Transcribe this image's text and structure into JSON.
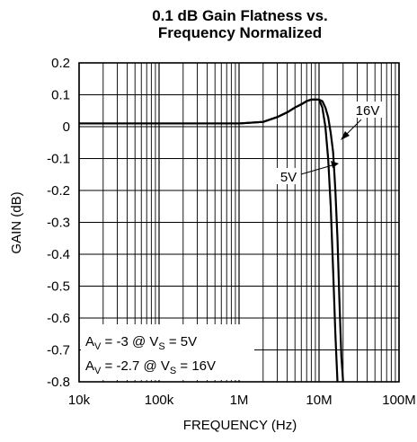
{
  "chart_data": {
    "type": "line",
    "title_line1": "0.1 dB Gain Flatness vs.",
    "title_line2": "Frequency Normalized",
    "xlabel": "FREQUENCY (Hz)",
    "ylabel": "GAIN (dB)",
    "x_scale": "log",
    "xlim": [
      10000,
      100000000
    ],
    "ylim": [
      -0.8,
      0.2
    ],
    "grid": true,
    "x_ticks": [
      {
        "value": 10000,
        "label": "10k"
      },
      {
        "value": 100000,
        "label": "100k"
      },
      {
        "value": 1000000,
        "label": "1M"
      },
      {
        "value": 10000000,
        "label": "10M"
      },
      {
        "value": 100000000,
        "label": "100M"
      }
    ],
    "y_ticks": [
      {
        "value": 0.2,
        "label": "0.2"
      },
      {
        "value": 0.1,
        "label": "0.1"
      },
      {
        "value": 0,
        "label": "0"
      },
      {
        "value": -0.1,
        "label": "-0.1"
      },
      {
        "value": -0.2,
        "label": "-0.2"
      },
      {
        "value": -0.3,
        "label": "-0.3"
      },
      {
        "value": -0.4,
        "label": "-0.4"
      },
      {
        "value": -0.5,
        "label": "-0.5"
      },
      {
        "value": -0.6,
        "label": "-0.6"
      },
      {
        "value": -0.7,
        "label": "-0.7"
      },
      {
        "value": -0.8,
        "label": "-0.8"
      }
    ],
    "series": [
      {
        "name": "5V",
        "x": [
          10000,
          100000,
          1000000,
          2000000,
          3000000,
          4000000,
          5000000,
          6000000,
          7000000,
          8000000,
          9000000,
          10000000,
          11000000,
          12000000,
          13000000,
          14000000,
          15000000,
          16000000,
          17000000
        ],
        "y": [
          0.01,
          0.01,
          0.01,
          0.015,
          0.03,
          0.045,
          0.06,
          0.07,
          0.08,
          0.085,
          0.085,
          0.085,
          0.06,
          0.0,
          -0.1,
          -0.25,
          -0.45,
          -0.65,
          -0.8
        ]
      },
      {
        "name": "16V",
        "x": [
          10000,
          100000,
          1000000,
          2000000,
          3000000,
          4000000,
          5000000,
          6000000,
          7000000,
          8000000,
          9000000,
          10000000,
          11000000,
          12000000,
          13000000,
          14000000,
          15000000,
          16000000,
          17000000,
          18000000,
          19000000,
          20000000
        ],
        "y": [
          0.01,
          0.01,
          0.01,
          0.015,
          0.03,
          0.045,
          0.06,
          0.07,
          0.08,
          0.085,
          0.085,
          0.085,
          0.08,
          0.06,
          0.03,
          -0.02,
          -0.08,
          -0.2,
          -0.35,
          -0.55,
          -0.72,
          -0.8
        ]
      }
    ],
    "annotations": [
      {
        "text": "16V",
        "series": "16V"
      },
      {
        "text": "5V",
        "series": "5V"
      }
    ],
    "conditions": [
      {
        "a_main": "A",
        "a_sub": "V",
        "a_rest": " = -3 @ V",
        "v_sub": "S",
        "v_rest": " = 5V"
      },
      {
        "a_main": "A",
        "a_sub": "V",
        "a_rest": " = -2.7 @ V",
        "v_sub": "S",
        "v_rest": " = 16V"
      }
    ]
  }
}
